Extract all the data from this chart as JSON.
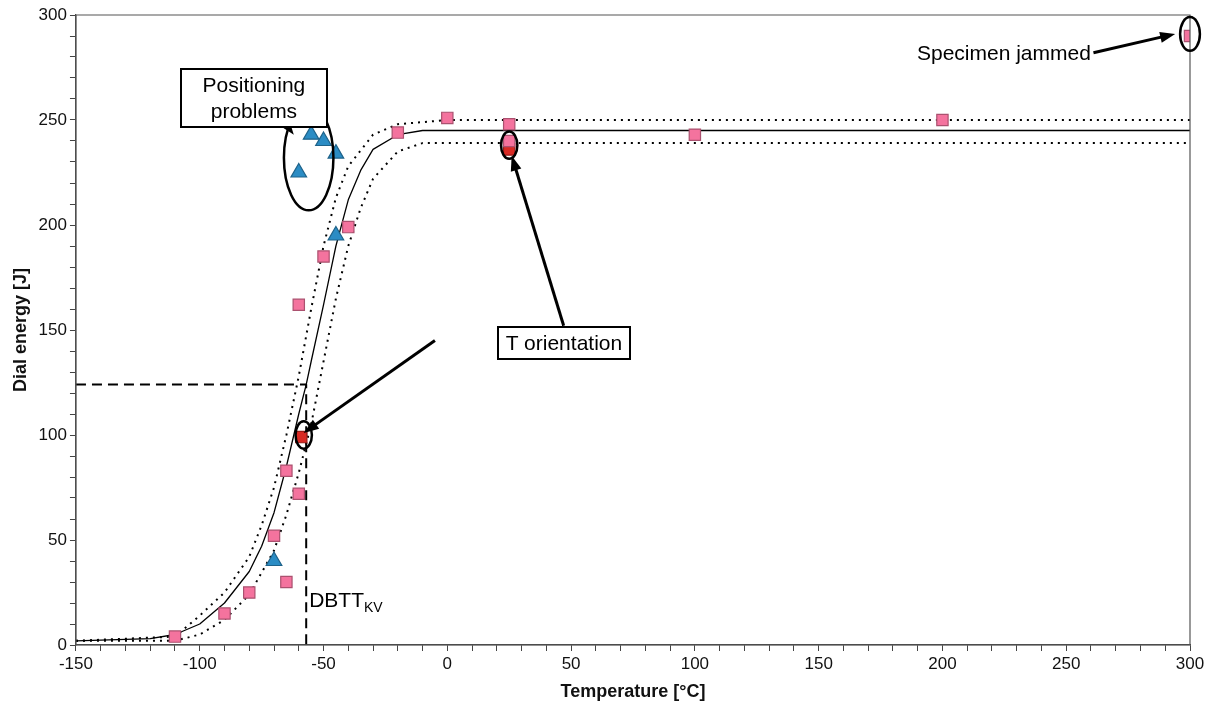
{
  "chart_data": {
    "type": "scatter",
    "xlabel": "Temperature [°C]",
    "ylabel": "Dial energy [J]",
    "xlim": [
      -150,
      300
    ],
    "xticks": [
      -150,
      -100,
      -50,
      0,
      50,
      100,
      150,
      200,
      250,
      300
    ],
    "ylim": [
      0,
      300
    ],
    "yticks": [
      0,
      50,
      100,
      150,
      200,
      250,
      300
    ],
    "grid": false,
    "legend": false,
    "series": [
      {
        "type": "line",
        "color": "#000000",
        "marker": "none",
        "line_style": "solid",
        "x": [
          -150,
          -120,
          -110,
          -100,
          -90,
          -80,
          -75,
          -70,
          -65,
          -60,
          -57,
          -55,
          -50,
          -45,
          -40,
          -35,
          -30,
          -20,
          -10,
          0,
          300
        ],
        "values": [
          2,
          3,
          5,
          10,
          20,
          35,
          47,
          63,
          85,
          110,
          124,
          135,
          162,
          190,
          212,
          226,
          236,
          243,
          245,
          245,
          245
        ]
      },
      {
        "type": "line",
        "color": "#000000",
        "marker": "none",
        "line_style": "dotted",
        "x": [
          -150,
          -110,
          -100,
          -90,
          -80,
          -75,
          -70,
          -65,
          -60,
          -55,
          -50,
          -45,
          -40,
          -30,
          -20,
          0,
          300
        ],
        "values": [
          2,
          4,
          14,
          25,
          42,
          57,
          75,
          100,
          128,
          160,
          190,
          213,
          228,
          243,
          248,
          250,
          250
        ]
      },
      {
        "type": "line",
        "color": "#000000",
        "marker": "none",
        "line_style": "dotted",
        "x": [
          -150,
          -110,
          -100,
          -90,
          -80,
          -70,
          -65,
          -60,
          -55,
          -50,
          -45,
          -40,
          -35,
          -30,
          -20,
          -10,
          0,
          300
        ],
        "values": [
          2,
          2,
          5,
          12,
          24,
          45,
          62,
          82,
          105,
          135,
          165,
          190,
          208,
          222,
          235,
          239,
          239,
          239
        ]
      },
      {
        "type": "line",
        "color": "#000000",
        "marker": "none",
        "line_style": "dashed",
        "x": [
          -150,
          -57,
          -57
        ],
        "values": [
          124,
          124,
          0
        ]
      },
      {
        "type": "scatter",
        "color": "#f4739e",
        "marker": "square",
        "x": [
          -110,
          -90,
          -80,
          -70,
          -65,
          -65,
          -60,
          -60,
          -50,
          -40,
          -20,
          0,
          25,
          25,
          100,
          200,
          300
        ],
        "values": [
          4,
          15,
          25,
          52,
          83,
          30,
          72,
          162,
          185,
          199,
          244,
          251,
          248,
          240,
          243,
          250,
          290
        ]
      },
      {
        "type": "scatter",
        "color": "#d92a24",
        "marker": "square",
        "x": [
          -59,
          25
        ],
        "values": [
          99,
          236
        ]
      },
      {
        "type": "scatter",
        "color": "#2b8cc4",
        "marker": "triangle",
        "x": [
          -70,
          -45,
          -60,
          -55,
          -50,
          -45
        ],
        "values": [
          40,
          195,
          225,
          243,
          240,
          234
        ]
      }
    ],
    "annotations": [
      "Positioning problems",
      "T orientation",
      "Specimen jammed",
      "DBTT$_{KV}$"
    ]
  }
}
